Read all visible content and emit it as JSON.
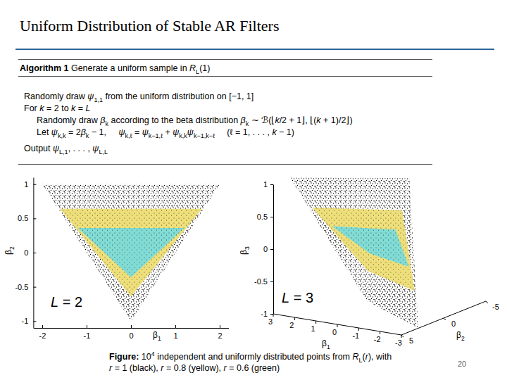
{
  "slide": {
    "title": "Uniform Distribution of Stable AR Filters",
    "algorithm": {
      "title": [
        {
          "b": "Algorithm 1"
        },
        " Generate a uniform sample in ",
        {
          "i": "R"
        },
        {
          "sub": "L"
        },
        "(1)"
      ],
      "steps": [
        [
          "Randomly draw ",
          {
            "i": "ψ"
          },
          {
            "sub": "1,1"
          },
          " from the uniform distribution on [−1, 1]"
        ],
        [
          "For ",
          {
            "i": "k"
          },
          " = 2 to ",
          {
            "i": "k"
          },
          " = ",
          {
            "i": "L"
          }
        ]
      ],
      "loop_body": [
        [
          "Randomly draw ",
          {
            "i": "β"
          },
          {
            "sub": "k"
          },
          " according to the beta distribution ",
          {
            "i": "β"
          },
          {
            "sub": "k"
          },
          " ∼ ℬ(⌊",
          {
            "i": "k"
          },
          "/2 + 1⌋, ⌊(",
          {
            "i": "k"
          },
          " + 1)/2⌋)"
        ],
        [
          "Let ",
          {
            "i": "ψ"
          },
          {
            "sub": "k,k"
          },
          " = 2",
          {
            "i": "β"
          },
          {
            "sub": "k"
          },
          " − 1,     ",
          {
            "i": "ψ"
          },
          {
            "sub": "k,ℓ"
          },
          " = ",
          {
            "i": "ψ"
          },
          {
            "sub": "k−1,ℓ"
          },
          " + ",
          {
            "i": "ψ"
          },
          {
            "sub": "k,k"
          },
          {
            "i": "ψ"
          },
          {
            "sub": "k−1,k−ℓ"
          },
          "     (ℓ = 1, . . . , ",
          {
            "i": "k"
          },
          " − 1)"
        ]
      ],
      "output": [
        "Output ",
        {
          "i": "ψ"
        },
        {
          "sub": "L,1"
        },
        ", . . . , ",
        {
          "i": "ψ"
        },
        {
          "sub": "L,L"
        }
      ]
    },
    "caption": [
      [
        {
          "b": "Figure:"
        },
        " 10",
        {
          "sup": "4"
        },
        " independent and uniformly distributed points from ",
        {
          "i": "R"
        },
        {
          "sub": "L"
        },
        "(",
        {
          "i": "r"
        },
        "), with"
      ],
      [
        {
          "i": "r"
        },
        " = 1 (black), ",
        {
          "i": "r"
        },
        " = 0.8 (yellow), ",
        {
          "i": "r"
        },
        " = 0.6 (green)"
      ]
    ],
    "page_number": 20
  },
  "chart_data": [
    {
      "type": "area",
      "x_label": [
        "β",
        {
          "sub": "1"
        }
      ],
      "y_label": [
        "β",
        {
          "sub": "2"
        }
      ],
      "annotation": [
        {
          "i": "L"
        },
        " = 2"
      ],
      "xlim": [
        -2.2,
        2.2
      ],
      "xticks": [
        -2,
        -1,
        0,
        1,
        2
      ],
      "ylim": [
        -1.1,
        1.1
      ],
      "yticks": [
        -1,
        -0.5,
        0,
        0.5,
        1
      ],
      "series": [
        {
          "color": "#000000",
          "x": [
            -2,
            2,
            0
          ],
          "y": [
            1,
            1,
            -1
          ]
        },
        {
          "color": "#eedf7a",
          "x": [
            -1.6,
            1.6,
            0
          ],
          "y": [
            0.64,
            0.64,
            -0.64
          ]
        },
        {
          "color": "#80dcd5",
          "x": [
            -1.2,
            1.2,
            0
          ],
          "y": [
            0.36,
            0.36,
            -0.36
          ]
        }
      ]
    },
    {
      "type": "area",
      "x_label": [
        "β",
        {
          "sub": "1"
        }
      ],
      "y_label": [
        "β",
        {
          "sub": "2"
        }
      ],
      "z_label": [
        "β",
        {
          "sub": "3"
        }
      ],
      "annotation": [
        {
          "i": "L"
        },
        " = 3"
      ],
      "xlim": [
        -3,
        3
      ],
      "xticks": [
        3,
        2,
        1,
        0,
        -1,
        -2,
        -3
      ],
      "ylim": [
        -5,
        5
      ],
      "yticks": [
        5,
        0,
        -5
      ],
      "zlim": [
        -1,
        1
      ],
      "zticks": [
        -1,
        -0.5,
        0,
        0.5,
        1
      ],
      "series": [
        {
          "color": "#000000",
          "x": [
            3,
            -3,
            1,
            -1
          ],
          "y": [
            3,
            3,
            -1,
            -1
          ],
          "z": [
            1,
            -1,
            -1,
            1
          ]
        },
        {
          "color": "#eedf7a",
          "x": [
            2.4,
            -2.4,
            0.8,
            -0.8
          ],
          "y": [
            1.92,
            1.92,
            -0.64,
            -0.64
          ],
          "z": [
            0.512,
            -0.512,
            -0.512,
            0.512
          ]
        },
        {
          "color": "#80dcd5",
          "x": [
            1.8,
            -1.8,
            0.6,
            -0.6
          ],
          "y": [
            1.08,
            1.08,
            -0.36,
            -0.36
          ],
          "z": [
            0.216,
            -0.216,
            -0.216,
            0.216
          ]
        }
      ]
    }
  ]
}
